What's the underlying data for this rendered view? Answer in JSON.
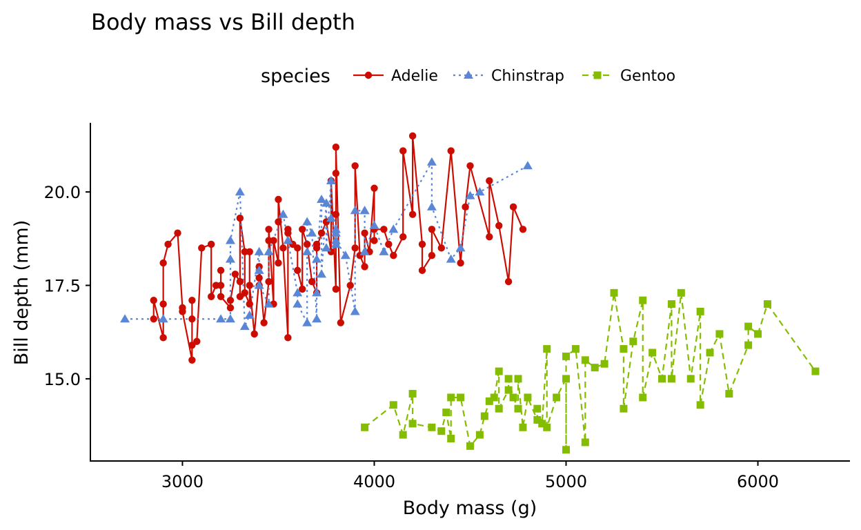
{
  "chart_data": {
    "type": "line",
    "title": "Body mass vs Bill depth",
    "xlabel": "Body mass (g)",
    "ylabel": "Bill depth (mm)",
    "xlim": [
      2520,
      6480
    ],
    "ylim": [
      12.8,
      21.85
    ],
    "x_ticks": [
      3000,
      4000,
      5000,
      6000
    ],
    "x_tick_labels": [
      "3000",
      "4000",
      "5000",
      "6000"
    ],
    "y_ticks": [
      15.0,
      17.5,
      20.0
    ],
    "y_tick_labels": [
      "15.0",
      "17.5",
      "20.0"
    ],
    "grid": false,
    "legend": {
      "title": "species",
      "position": "top"
    },
    "series": [
      {
        "name": "Adelie",
        "color": "#cc0c00",
        "marker": "circle",
        "line": "solid",
        "points": [
          [
            2850,
            16.6
          ],
          [
            2850,
            17.1
          ],
          [
            2900,
            16.1
          ],
          [
            2900,
            17.0
          ],
          [
            2900,
            18.1
          ],
          [
            2925,
            18.6
          ],
          [
            2975,
            18.9
          ],
          [
            3000,
            16.9
          ],
          [
            3000,
            16.8
          ],
          [
            3050,
            15.5
          ],
          [
            3050,
            16.6
          ],
          [
            3050,
            17.1
          ],
          [
            3050,
            15.9
          ],
          [
            3075,
            16.0
          ],
          [
            3100,
            18.5
          ],
          [
            3150,
            18.6
          ],
          [
            3150,
            17.2
          ],
          [
            3175,
            17.5
          ],
          [
            3200,
            17.5
          ],
          [
            3200,
            17.9
          ],
          [
            3200,
            17.2
          ],
          [
            3250,
            16.9
          ],
          [
            3250,
            17.1
          ],
          [
            3275,
            17.8
          ],
          [
            3300,
            17.6
          ],
          [
            3300,
            17.2
          ],
          [
            3300,
            19.3
          ],
          [
            3325,
            18.4
          ],
          [
            3325,
            17.3
          ],
          [
            3350,
            17.0
          ],
          [
            3350,
            18.4
          ],
          [
            3350,
            17.5
          ],
          [
            3375,
            16.2
          ],
          [
            3400,
            17.7
          ],
          [
            3400,
            17.5
          ],
          [
            3400,
            18.0
          ],
          [
            3425,
            16.5
          ],
          [
            3450,
            17.6
          ],
          [
            3450,
            18.7
          ],
          [
            3450,
            19.0
          ],
          [
            3475,
            17.0
          ],
          [
            3475,
            18.7
          ],
          [
            3500,
            18.1
          ],
          [
            3500,
            19.2
          ],
          [
            3500,
            19.8
          ],
          [
            3525,
            18.5
          ],
          [
            3550,
            16.1
          ],
          [
            3550,
            18.9
          ],
          [
            3550,
            19.0
          ],
          [
            3575,
            18.6
          ],
          [
            3600,
            18.5
          ],
          [
            3600,
            17.9
          ],
          [
            3625,
            17.4
          ],
          [
            3625,
            19.0
          ],
          [
            3650,
            18.6
          ],
          [
            3675,
            17.6
          ],
          [
            3700,
            17.3
          ],
          [
            3700,
            18.6
          ],
          [
            3700,
            18.5
          ],
          [
            3725,
            18.9
          ],
          [
            3750,
            19.2
          ],
          [
            3775,
            18.4
          ],
          [
            3775,
            20.3
          ],
          [
            3800,
            17.4
          ],
          [
            3800,
            19.4
          ],
          [
            3800,
            20.5
          ],
          [
            3800,
            21.2
          ],
          [
            3825,
            16.5
          ],
          [
            3875,
            17.5
          ],
          [
            3900,
            18.5
          ],
          [
            3900,
            20.7
          ],
          [
            3925,
            18.3
          ],
          [
            3950,
            18.0
          ],
          [
            3950,
            18.9
          ],
          [
            3975,
            18.4
          ],
          [
            4000,
            20.1
          ],
          [
            4000,
            18.7
          ],
          [
            4000,
            19.0
          ],
          [
            4050,
            19.0
          ],
          [
            4075,
            18.6
          ],
          [
            4100,
            18.3
          ],
          [
            4150,
            18.8
          ],
          [
            4150,
            21.1
          ],
          [
            4200,
            19.4
          ],
          [
            4200,
            21.5
          ],
          [
            4250,
            18.6
          ],
          [
            4250,
            17.9
          ],
          [
            4300,
            18.3
          ],
          [
            4300,
            19.0
          ],
          [
            4350,
            18.5
          ],
          [
            4400,
            21.1
          ],
          [
            4450,
            18.1
          ],
          [
            4475,
            19.6
          ],
          [
            4500,
            20.7
          ],
          [
            4600,
            18.8
          ],
          [
            4600,
            20.3
          ],
          [
            4650,
            19.1
          ],
          [
            4700,
            17.6
          ],
          [
            4725,
            19.6
          ],
          [
            4775,
            19.0
          ]
        ]
      },
      {
        "name": "Chinstrap",
        "color": "#5a86d6",
        "marker": "triangle",
        "line": "dotted",
        "points": [
          [
            2700,
            16.6
          ],
          [
            2900,
            16.6
          ],
          [
            3200,
            16.6
          ],
          [
            3250,
            16.6
          ],
          [
            3250,
            18.2
          ],
          [
            3250,
            18.7
          ],
          [
            3300,
            20.0
          ],
          [
            3325,
            16.4
          ],
          [
            3350,
            16.7
          ],
          [
            3400,
            18.4
          ],
          [
            3400,
            17.9
          ],
          [
            3400,
            17.5
          ],
          [
            3450,
            17.0
          ],
          [
            3450,
            18.4
          ],
          [
            3525,
            19.4
          ],
          [
            3550,
            18.7
          ],
          [
            3600,
            17.3
          ],
          [
            3600,
            17.0
          ],
          [
            3650,
            16.5
          ],
          [
            3650,
            18.4
          ],
          [
            3650,
            19.2
          ],
          [
            3675,
            18.9
          ],
          [
            3700,
            16.6
          ],
          [
            3700,
            17.3
          ],
          [
            3700,
            18.2
          ],
          [
            3725,
            19.8
          ],
          [
            3725,
            17.8
          ],
          [
            3750,
            19.7
          ],
          [
            3750,
            18.5
          ],
          [
            3775,
            20.3
          ],
          [
            3775,
            19.3
          ],
          [
            3800,
            18.9
          ],
          [
            3800,
            19.0
          ],
          [
            3800,
            18.6
          ],
          [
            3800,
            18.7
          ],
          [
            3850,
            18.3
          ],
          [
            3900,
            16.8
          ],
          [
            3900,
            19.5
          ],
          [
            3950,
            19.5
          ],
          [
            3950,
            19.5
          ],
          [
            3950,
            18.4
          ],
          [
            4000,
            19.1
          ],
          [
            4050,
            18.4
          ],
          [
            4100,
            19.0
          ],
          [
            4300,
            20.8
          ],
          [
            4300,
            19.6
          ],
          [
            4400,
            18.2
          ],
          [
            4450,
            18.5
          ],
          [
            4500,
            19.9
          ],
          [
            4550,
            20.0
          ],
          [
            4800,
            20.7
          ]
        ]
      },
      {
        "name": "Gentoo",
        "color": "#84bd00",
        "marker": "square",
        "line": "dashed",
        "points": [
          [
            3950,
            13.7
          ],
          [
            4100,
            14.3
          ],
          [
            4150,
            13.5
          ],
          [
            4200,
            14.6
          ],
          [
            4200,
            13.8
          ],
          [
            4300,
            13.7
          ],
          [
            4350,
            13.6
          ],
          [
            4375,
            14.1
          ],
          [
            4400,
            13.4
          ],
          [
            4400,
            14.5
          ],
          [
            4450,
            14.5
          ],
          [
            4500,
            13.2
          ],
          [
            4550,
            13.5
          ],
          [
            4575,
            14.0
          ],
          [
            4600,
            14.4
          ],
          [
            4625,
            14.5
          ],
          [
            4650,
            15.2
          ],
          [
            4650,
            14.2
          ],
          [
            4700,
            14.7
          ],
          [
            4700,
            15.0
          ],
          [
            4725,
            14.5
          ],
          [
            4750,
            14.2
          ],
          [
            4750,
            15.0
          ],
          [
            4775,
            13.7
          ],
          [
            4800,
            14.5
          ],
          [
            4850,
            13.9
          ],
          [
            4850,
            14.2
          ],
          [
            4875,
            13.8
          ],
          [
            4900,
            15.8
          ],
          [
            4900,
            13.7
          ],
          [
            4950,
            14.5
          ],
          [
            5000,
            15.0
          ],
          [
            5000,
            13.1
          ],
          [
            5000,
            15.6
          ],
          [
            5050,
            15.8
          ],
          [
            5100,
            13.3
          ],
          [
            5100,
            15.5
          ],
          [
            5150,
            15.3
          ],
          [
            5200,
            15.4
          ],
          [
            5250,
            17.3
          ],
          [
            5300,
            15.8
          ],
          [
            5300,
            14.2
          ],
          [
            5350,
            16.0
          ],
          [
            5400,
            17.1
          ],
          [
            5400,
            14.5
          ],
          [
            5450,
            15.7
          ],
          [
            5500,
            15.0
          ],
          [
            5550,
            17.0
          ],
          [
            5550,
            15.0
          ],
          [
            5600,
            17.3
          ],
          [
            5650,
            15.0
          ],
          [
            5700,
            16.8
          ],
          [
            5700,
            14.3
          ],
          [
            5750,
            15.7
          ],
          [
            5800,
            16.2
          ],
          [
            5850,
            14.6
          ],
          [
            5950,
            15.9
          ],
          [
            5950,
            16.4
          ],
          [
            6000,
            16.2
          ],
          [
            6050,
            17.0
          ],
          [
            6300,
            15.2
          ]
        ]
      }
    ]
  }
}
